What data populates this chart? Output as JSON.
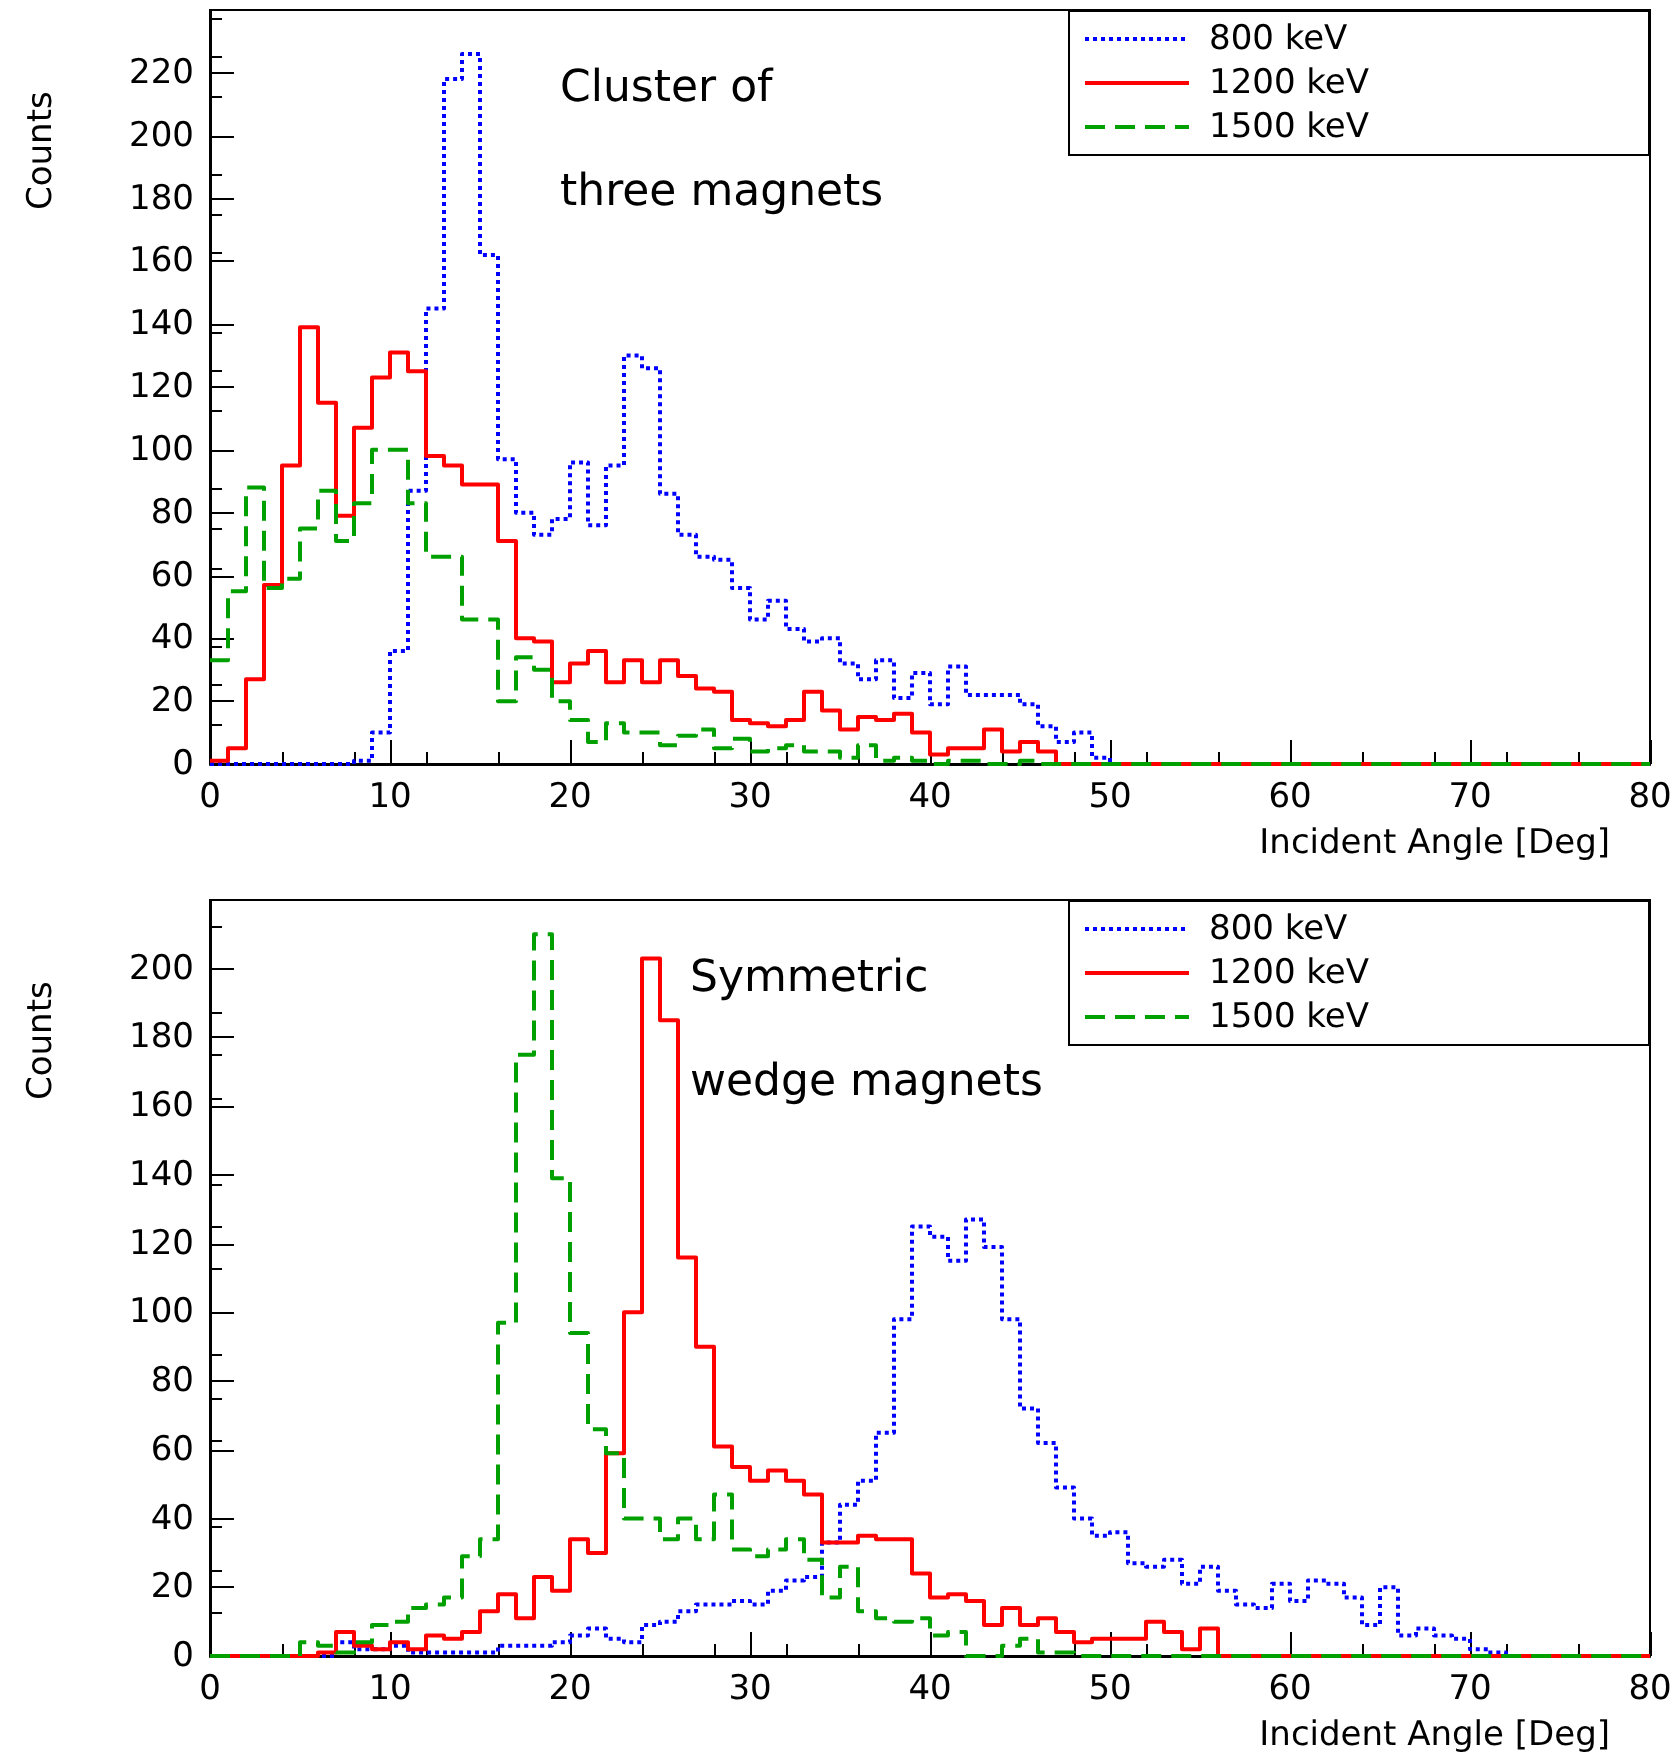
{
  "chart_data": [
    {
      "type": "histogram",
      "xlabel": "Incident Angle [Deg]",
      "ylabel": "Counts",
      "annotations": [
        "Cluster of",
        "three magnets"
      ],
      "bins": [
        0,
        1,
        2,
        3,
        4,
        5,
        6,
        7,
        8,
        9,
        10,
        11,
        12,
        13,
        14,
        15,
        16,
        17,
        18,
        19,
        20,
        21,
        22,
        23,
        24,
        25,
        26,
        27,
        28,
        29,
        30,
        31,
        32,
        33,
        34,
        35,
        36,
        37,
        38,
        39,
        40,
        41,
        42,
        43,
        44,
        45,
        46,
        47,
        48,
        49,
        50,
        51,
        52,
        53,
        54,
        55,
        56,
        57,
        58,
        59,
        60,
        61,
        62,
        63,
        64,
        65,
        66,
        67,
        68,
        69,
        70,
        71,
        72,
        73,
        74,
        75,
        76,
        77,
        78,
        79,
        80
      ],
      "xlim": [
        0,
        80
      ],
      "xticks": [
        0,
        10,
        20,
        30,
        40,
        50,
        60,
        70,
        80
      ],
      "ylim": [
        0,
        240
      ],
      "yticks": [
        0,
        20,
        40,
        60,
        80,
        100,
        120,
        140,
        160,
        180,
        200,
        220
      ],
      "legend": "top right",
      "series": [
        {
          "name": "800 keV",
          "color": "#0000ff",
          "line_style": "dotted",
          "values": [
            0,
            0,
            0,
            0,
            0,
            0,
            0,
            0,
            1,
            10,
            36,
            87,
            145,
            218,
            226,
            162,
            97,
            80,
            73,
            78,
            96,
            76,
            95,
            130,
            126,
            86,
            73,
            66,
            65,
            56,
            46,
            52,
            43,
            39,
            40,
            32,
            27,
            33,
            21,
            29,
            19,
            31,
            22,
            22,
            22,
            19,
            12,
            7,
            10,
            2,
            0,
            0,
            0,
            0,
            0,
            0,
            0,
            0,
            0,
            0,
            0,
            0,
            0,
            0,
            0,
            0,
            0,
            0,
            0,
            0,
            0,
            0,
            0,
            0,
            0,
            0,
            0,
            0,
            0,
            0
          ]
        },
        {
          "name": "1200 keV",
          "color": "#ff0000",
          "line_style": "solid",
          "values": [
            1,
            5,
            27,
            57,
            95,
            139,
            115,
            79,
            107,
            123,
            131,
            125,
            98,
            95,
            89,
            89,
            71,
            40,
            39,
            26,
            32,
            36,
            26,
            33,
            26,
            33,
            28,
            24,
            23,
            14,
            13,
            12,
            14,
            23,
            17,
            11,
            15,
            14,
            16,
            10,
            3,
            5,
            5,
            11,
            4,
            7,
            4,
            0,
            0,
            0,
            0,
            0,
            0,
            0,
            0,
            0,
            0,
            0,
            0,
            0,
            0,
            0,
            0,
            0,
            0,
            0,
            0,
            0,
            0,
            0,
            0,
            0,
            0,
            0,
            0,
            0,
            0,
            0,
            0,
            0
          ]
        },
        {
          "name": "1500 keV",
          "color": "#00a000",
          "line_style": "dashed",
          "values": [
            33,
            55,
            88,
            56,
            59,
            75,
            87,
            71,
            83,
            100,
            100,
            83,
            66,
            66,
            46,
            46,
            20,
            34,
            30,
            20,
            14,
            7,
            13,
            10,
            10,
            6,
            9,
            11,
            5,
            8,
            4,
            5,
            6,
            4,
            4,
            2,
            6,
            1,
            2,
            1,
            0,
            1,
            1,
            0,
            0,
            1,
            0,
            0,
            0,
            0,
            0,
            0,
            0,
            0,
            0,
            0,
            0,
            0,
            0,
            0,
            0,
            0,
            0,
            0,
            0,
            0,
            0,
            0,
            0,
            0,
            0,
            0,
            0,
            0,
            0,
            0,
            0,
            0,
            0,
            0
          ]
        }
      ]
    },
    {
      "type": "histogram",
      "xlabel": "Incident Angle [Deg]",
      "ylabel": "Counts",
      "annotations": [
        "Symmetric",
        "wedge magnets"
      ],
      "bins": [
        0,
        1,
        2,
        3,
        4,
        5,
        6,
        7,
        8,
        9,
        10,
        11,
        12,
        13,
        14,
        15,
        16,
        17,
        18,
        19,
        20,
        21,
        22,
        23,
        24,
        25,
        26,
        27,
        28,
        29,
        30,
        31,
        32,
        33,
        34,
        35,
        36,
        37,
        38,
        39,
        40,
        41,
        42,
        43,
        44,
        45,
        46,
        47,
        48,
        49,
        50,
        51,
        52,
        53,
        54,
        55,
        56,
        57,
        58,
        59,
        60,
        61,
        62,
        63,
        64,
        65,
        66,
        67,
        68,
        69,
        70,
        71,
        72,
        73,
        74,
        75,
        76,
        77,
        78,
        79,
        80
      ],
      "xlim": [
        0,
        80
      ],
      "xticks": [
        0,
        10,
        20,
        30,
        40,
        50,
        60,
        70,
        80
      ],
      "ylim": [
        0,
        220
      ],
      "yticks": [
        0,
        20,
        40,
        60,
        80,
        100,
        120,
        140,
        160,
        180,
        200
      ],
      "legend": "top right",
      "series": [
        {
          "name": "800 keV",
          "color": "#0000ff",
          "line_style": "dotted",
          "values": [
            0,
            0,
            0,
            0,
            0,
            0,
            0,
            4,
            2,
            2,
            3,
            1,
            1,
            1,
            1,
            1,
            3,
            3,
            3,
            4,
            6,
            8,
            5,
            4,
            9,
            10,
            13,
            15,
            15,
            16,
            15,
            19,
            22,
            23,
            33,
            44,
            51,
            65,
            98,
            125,
            122,
            115,
            127,
            119,
            98,
            72,
            62,
            49,
            40,
            35,
            36,
            27,
            26,
            28,
            21,
            26,
            19,
            15,
            14,
            21,
            16,
            22,
            21,
            17,
            9,
            20,
            6,
            8,
            6,
            5,
            2,
            1,
            0,
            0,
            0,
            0,
            0,
            0,
            0,
            0
          ]
        },
        {
          "name": "1200 keV",
          "color": "#ff0000",
          "line_style": "solid",
          "values": [
            0,
            0,
            0,
            0,
            0,
            0,
            1,
            7,
            3,
            2,
            4,
            2,
            6,
            5,
            7,
            13,
            18,
            11,
            23,
            19,
            34,
            30,
            59,
            100,
            203,
            185,
            116,
            90,
            61,
            55,
            51,
            54,
            51,
            47,
            33,
            33,
            35,
            34,
            34,
            24,
            17,
            18,
            16,
            9,
            14,
            9,
            11,
            7,
            4,
            5,
            5,
            5,
            10,
            7,
            2,
            8,
            0,
            0,
            0,
            0,
            0,
            0,
            0,
            0,
            0,
            0,
            0,
            0,
            0,
            0,
            0,
            0,
            0,
            0,
            0,
            0,
            0,
            0,
            0,
            0
          ]
        },
        {
          "name": "1500 keV",
          "color": "#00a000",
          "line_style": "dashed",
          "values": [
            0,
            0,
            0,
            0,
            0,
            4,
            3,
            1,
            4,
            9,
            10,
            14,
            15,
            17,
            29,
            34,
            97,
            175,
            210,
            139,
            94,
            66,
            59,
            40,
            40,
            34,
            40,
            34,
            47,
            31,
            29,
            31,
            34,
            28,
            17,
            26,
            13,
            11,
            10,
            11,
            6,
            7,
            0,
            0,
            3,
            5,
            1,
            1,
            0,
            0,
            0,
            0,
            0,
            0,
            0,
            0,
            0,
            0,
            0,
            0,
            0,
            0,
            0,
            0,
            0,
            0,
            0,
            0,
            0,
            0,
            0,
            0,
            0,
            0,
            0,
            0,
            0,
            0,
            0,
            0
          ]
        }
      ]
    }
  ]
}
